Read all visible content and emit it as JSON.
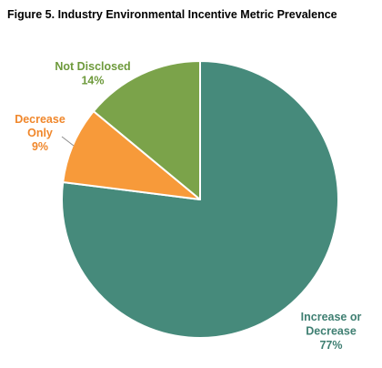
{
  "title": "Figure 5. Industry Environmental Incentive Metric Prevalence",
  "chart_data": {
    "type": "pie",
    "title": "Figure 5. Industry Environmental Incentive Metric Prevalence",
    "slices": [
      {
        "label_lines": [
          "Increase or",
          "Decrease"
        ],
        "pct_label": "77%",
        "value": 77,
        "color": "#468A7B"
      },
      {
        "label_lines": [
          "Decrease",
          "Only"
        ],
        "pct_label": "9%",
        "value": 9,
        "color": "#F79A3A"
      },
      {
        "label_lines": [
          "Not Disclosed"
        ],
        "pct_label": "14%",
        "value": 14,
        "color": "#7BA34A"
      }
    ],
    "start": "12 o'clock",
    "direction": "clockwise",
    "label_colors": [
      "#3F7F72",
      "#F0872B",
      "#6E9A3C"
    ],
    "legend": "none"
  }
}
